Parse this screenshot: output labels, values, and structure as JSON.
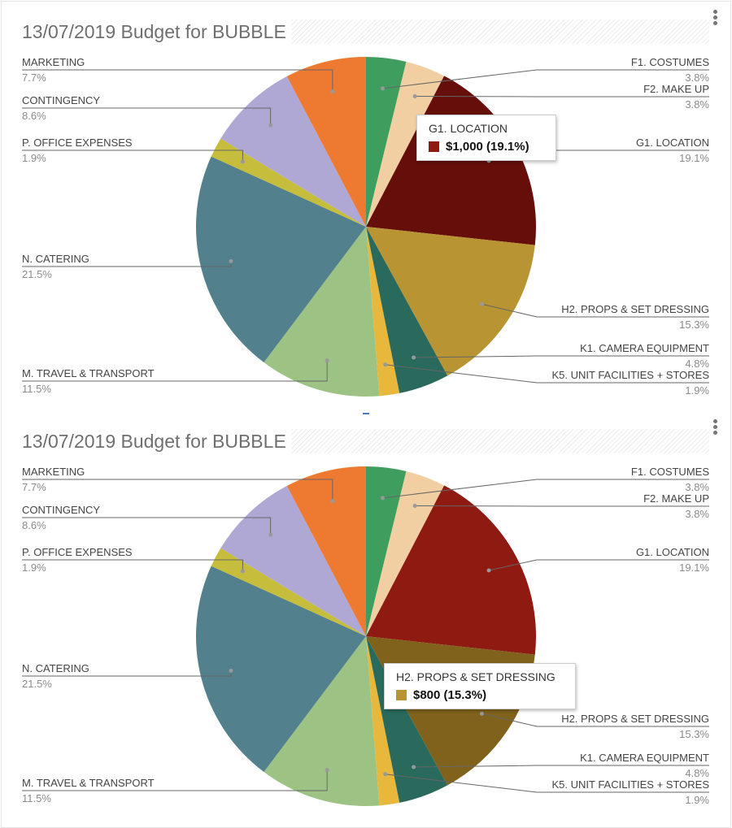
{
  "chart_data": [
    {
      "type": "pie",
      "title": "13/07/2019 Budget for BUBBLE",
      "slices": [
        {
          "label": "F1. COSTUMES",
          "pct": "3.8%",
          "value": 3.8,
          "color": "#3f9e5e"
        },
        {
          "label": "F2. MAKE UP",
          "pct": "3.8%",
          "value": 3.8,
          "color": "#f2cfa2"
        },
        {
          "label": "G1. LOCATION",
          "pct": "19.1%",
          "value": 19.1,
          "color": "#650e0a"
        },
        {
          "label": "H2. PROPS & SET DRESSING",
          "pct": "15.3%",
          "value": 15.3,
          "color": "#b89432"
        },
        {
          "label": "K1. CAMERA EQUIPMENT",
          "pct": "4.8%",
          "value": 4.8,
          "color": "#2a6a5c"
        },
        {
          "label": "K5. UNIT FACILITIES + STORES",
          "pct": "1.9%",
          "value": 1.9,
          "color": "#e8b83c"
        },
        {
          "label": "M. TRAVEL & TRANSPORT",
          "pct": "11.5%",
          "value": 11.5,
          "color": "#9dc384"
        },
        {
          "label": "N. CATERING",
          "pct": "21.5%",
          "value": 21.5,
          "color": "#52808c"
        },
        {
          "label": "P. OFFICE EXPENSES",
          "pct": "1.9%",
          "value": 1.9,
          "color": "#c6bd3c"
        },
        {
          "label": "CONTINGENCY",
          "pct": "8.6%",
          "value": 8.6,
          "color": "#b0a8d4"
        },
        {
          "label": "MARKETING",
          "pct": "7.7%",
          "value": 7.7,
          "color": "#ed7a30"
        }
      ],
      "tooltip": {
        "title": "G1. LOCATION",
        "value": "$1,000 (19.1%)",
        "color": "#8e1a12"
      }
    },
    {
      "type": "pie",
      "title": "13/07/2019 Budget for BUBBLE",
      "slices": [
        {
          "label": "F1. COSTUMES",
          "pct": "3.8%",
          "value": 3.8,
          "color": "#3f9e5e"
        },
        {
          "label": "F2. MAKE UP",
          "pct": "3.8%",
          "value": 3.8,
          "color": "#f2cfa2"
        },
        {
          "label": "G1. LOCATION",
          "pct": "19.1%",
          "value": 19.1,
          "color": "#8e1a12"
        },
        {
          "label": "H2. PROPS & SET DRESSING",
          "pct": "15.3%",
          "value": 15.3,
          "color": "#80621c"
        },
        {
          "label": "K1. CAMERA EQUIPMENT",
          "pct": "4.8%",
          "value": 4.8,
          "color": "#2a6a5c"
        },
        {
          "label": "K5. UNIT FACILITIES + STORES",
          "pct": "1.9%",
          "value": 1.9,
          "color": "#e8b83c"
        },
        {
          "label": "M. TRAVEL & TRANSPORT",
          "pct": "11.5%",
          "value": 11.5,
          "color": "#9dc384"
        },
        {
          "label": "N. CATERING",
          "pct": "21.5%",
          "value": 21.5,
          "color": "#52808c"
        },
        {
          "label": "P. OFFICE EXPENSES",
          "pct": "1.9%",
          "value": 1.9,
          "color": "#c6bd3c"
        },
        {
          "label": "CONTINGENCY",
          "pct": "8.6%",
          "value": 8.6,
          "color": "#b0a8d4"
        },
        {
          "label": "MARKETING",
          "pct": "7.7%",
          "value": 7.7,
          "color": "#ed7a30"
        }
      ],
      "tooltip": {
        "title": "H2. PROPS & SET DRESSING",
        "value": "$800 (15.3%)",
        "color": "#b89432"
      }
    }
  ]
}
